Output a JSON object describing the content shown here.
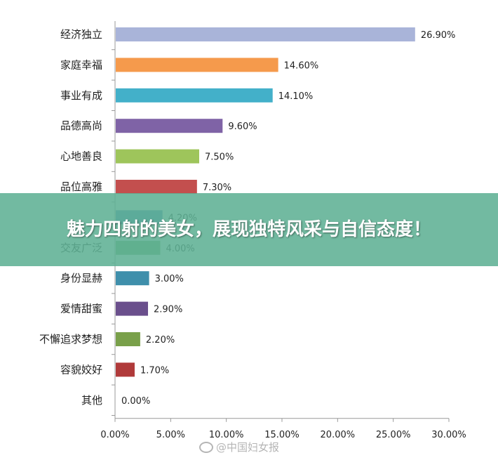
{
  "chart_data": {
    "type": "bar",
    "orientation": "horizontal",
    "categories": [
      "经济独立",
      "家庭幸福",
      "事业有成",
      "品德高尚",
      "心地善良",
      "品位高雅",
      "",
      "交友广泛",
      "身份显赫",
      "爱情甜蜜",
      "不懈追求梦想",
      "容貌姣好",
      "其他"
    ],
    "values": [
      26.9,
      14.6,
      14.1,
      9.6,
      7.5,
      7.3,
      4.2,
      4.0,
      3.0,
      2.9,
      2.2,
      1.7,
      0.0
    ],
    "value_labels": [
      "26.90%",
      "14.60%",
      "14.10%",
      "9.60%",
      "7.50%",
      "7.30%",
      "4.20%",
      "4.00%",
      "3.00%",
      "2.90%",
      "2.20%",
      "1.70%",
      "0.00%"
    ],
    "colors": [
      "#a9b4d9",
      "#f59a4c",
      "#43b0c9",
      "#7f63a6",
      "#9ec55b",
      "#c34f4e",
      "#4a86c6",
      "#6ea86a",
      "#3f8fab",
      "#6a4f8c",
      "#79a04a",
      "#b03a3a",
      "#888888"
    ],
    "xticks": [
      "0.00%",
      "5.00%",
      "10.00%",
      "15.00%",
      "20.00%",
      "25.00%",
      "30.00%"
    ],
    "xlim": [
      0,
      30
    ],
    "grid": false,
    "legend": "none"
  },
  "overlay": {
    "banner_text": "魅力四射的美女，展现独特风采与自信态度！",
    "watermark": "@中国妇女报"
  }
}
